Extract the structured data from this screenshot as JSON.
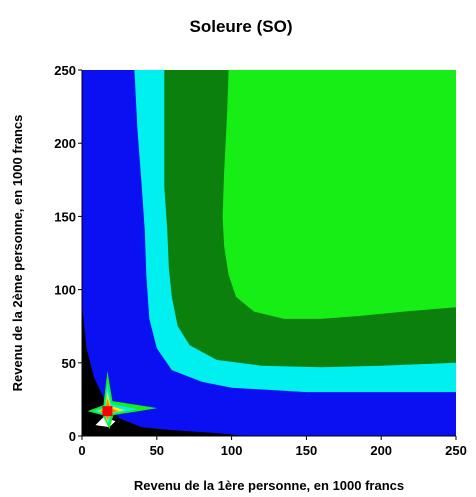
{
  "chart_data": {
    "type": "heatmap",
    "title": "Soleure (SO)",
    "xlabel": "Revenu de la 1ère personne, en 1000 francs",
    "ylabel": "Revenu de la 2ème personne, en 1000 francs",
    "xlim": [
      0,
      250
    ],
    "ylim": [
      0,
      250
    ],
    "x_ticks": [
      0,
      50,
      100,
      150,
      200,
      250
    ],
    "y_ticks": [
      0,
      50,
      100,
      150,
      200,
      250
    ],
    "grid": false,
    "colors": {
      "black": "#000000",
      "blue": "#0a10f2",
      "cyan": "#00f0f0",
      "dark_green": "#0c800c",
      "light_green": "#16ee16",
      "white": "#ffffff",
      "red": "#ff0000",
      "orange": "#ff8800",
      "yellow": "#ffee00"
    },
    "regions": [
      {
        "color": "blue",
        "boundary": [
          [
            0,
            0
          ],
          [
            250,
            0
          ],
          [
            250,
            250
          ],
          [
            0,
            250
          ]
        ]
      },
      {
        "color": "black",
        "boundary": [
          [
            0,
            0
          ],
          [
            0,
            90
          ],
          [
            3,
            60
          ],
          [
            8,
            40
          ],
          [
            15,
            25
          ],
          [
            25,
            12
          ],
          [
            40,
            6
          ],
          [
            60,
            4
          ],
          [
            90,
            2
          ],
          [
            110,
            0
          ]
        ]
      },
      {
        "color": "cyan",
        "boundary": [
          [
            35,
            250
          ],
          [
            37,
            210
          ],
          [
            40,
            170
          ],
          [
            42,
            140
          ],
          [
            43,
            110
          ],
          [
            45,
            80
          ],
          [
            50,
            60
          ],
          [
            60,
            45
          ],
          [
            80,
            37
          ],
          [
            100,
            33
          ],
          [
            150,
            30
          ],
          [
            200,
            30
          ],
          [
            250,
            30
          ],
          [
            250,
            250
          ]
        ]
      },
      {
        "color": "dark_green",
        "boundary": [
          [
            55,
            250
          ],
          [
            55,
            170
          ],
          [
            57,
            140
          ],
          [
            58,
            115
          ],
          [
            60,
            95
          ],
          [
            64,
            75
          ],
          [
            72,
            62
          ],
          [
            90,
            52
          ],
          [
            120,
            48
          ],
          [
            160,
            47
          ],
          [
            200,
            48
          ],
          [
            250,
            50
          ],
          [
            250,
            250
          ]
        ]
      },
      {
        "color": "light_green",
        "boundary": [
          [
            98,
            250
          ],
          [
            97,
            220
          ],
          [
            95,
            180
          ],
          [
            94,
            150
          ],
          [
            95,
            130
          ],
          [
            98,
            110
          ],
          [
            103,
            95
          ],
          [
            115,
            85
          ],
          [
            135,
            80
          ],
          [
            160,
            80
          ],
          [
            185,
            82
          ],
          [
            215,
            85
          ],
          [
            250,
            88
          ],
          [
            250,
            250
          ]
        ]
      }
    ],
    "hotspot": {
      "center": [
        17,
        17
      ],
      "colors": [
        "yellow",
        "orange",
        "red",
        "cyan",
        "light_green",
        "white"
      ]
    }
  }
}
